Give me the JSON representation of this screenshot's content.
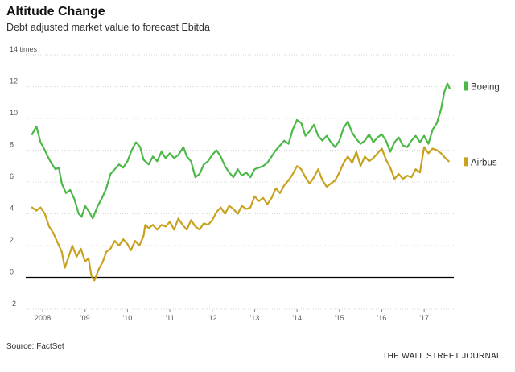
{
  "header": {
    "title": "Altitude Change",
    "subtitle": "Debt adjusted market value to forecast Ebitda"
  },
  "footer": {
    "source": "Source: FactSet",
    "credit": "THE WALL STREET JOURNAL."
  },
  "colors": {
    "boeing": "#4cb848",
    "airbus": "#c8a21e",
    "zero_line": "#000000",
    "grid": "#d6d6d6"
  },
  "chart_data": {
    "type": "line",
    "title": "Altitude Change",
    "subtitle": "Debt adjusted market value to forecast Ebitda",
    "xlabel": "",
    "ylabel": "",
    "xlim": [
      2007.6,
      2017.7
    ],
    "ylim": [
      -2,
      14
    ],
    "y_ticks": [
      -2,
      0,
      2,
      4,
      6,
      8,
      10,
      12,
      14
    ],
    "y_tick_labels": [
      "-2",
      "0",
      "2",
      "4",
      "6",
      "8",
      "10",
      "12",
      "14 times"
    ],
    "x_ticks": [
      2008,
      2009,
      2010,
      2011,
      2012,
      2013,
      2014,
      2015,
      2016,
      2017
    ],
    "x_tick_labels": [
      "2008",
      "'09",
      "'10",
      "'11",
      "'12",
      "'13",
      "'14",
      "'15",
      "'16",
      "'17"
    ],
    "grid": true,
    "legend_placement": "right, at line ends",
    "series": [
      {
        "name": "Boeing",
        "points": [
          [
            2007.75,
            9.0
          ],
          [
            2007.85,
            9.5
          ],
          [
            2007.95,
            8.5
          ],
          [
            2008.05,
            8.0
          ],
          [
            2008.12,
            7.6
          ],
          [
            2008.2,
            7.2
          ],
          [
            2008.3,
            6.8
          ],
          [
            2008.38,
            6.9
          ],
          [
            2008.45,
            5.9
          ],
          [
            2008.55,
            5.3
          ],
          [
            2008.65,
            5.5
          ],
          [
            2008.75,
            4.9
          ],
          [
            2008.85,
            4.0
          ],
          [
            2008.92,
            3.8
          ],
          [
            2009.0,
            4.5
          ],
          [
            2009.1,
            4.1
          ],
          [
            2009.18,
            3.7
          ],
          [
            2009.3,
            4.5
          ],
          [
            2009.4,
            5.0
          ],
          [
            2009.5,
            5.6
          ],
          [
            2009.6,
            6.5
          ],
          [
            2009.7,
            6.8
          ],
          [
            2009.8,
            7.1
          ],
          [
            2009.9,
            6.9
          ],
          [
            2010.0,
            7.3
          ],
          [
            2010.1,
            8.0
          ],
          [
            2010.2,
            8.5
          ],
          [
            2010.3,
            8.2
          ],
          [
            2010.38,
            7.4
          ],
          [
            2010.5,
            7.1
          ],
          [
            2010.6,
            7.6
          ],
          [
            2010.7,
            7.3
          ],
          [
            2010.8,
            7.9
          ],
          [
            2010.9,
            7.5
          ],
          [
            2011.0,
            7.8
          ],
          [
            2011.1,
            7.5
          ],
          [
            2011.2,
            7.7
          ],
          [
            2011.32,
            8.2
          ],
          [
            2011.4,
            7.6
          ],
          [
            2011.5,
            7.3
          ],
          [
            2011.6,
            6.3
          ],
          [
            2011.7,
            6.5
          ],
          [
            2011.8,
            7.1
          ],
          [
            2011.9,
            7.3
          ],
          [
            2012.0,
            7.7
          ],
          [
            2012.1,
            8.0
          ],
          [
            2012.2,
            7.6
          ],
          [
            2012.3,
            7.0
          ],
          [
            2012.4,
            6.6
          ],
          [
            2012.5,
            6.3
          ],
          [
            2012.6,
            6.8
          ],
          [
            2012.7,
            6.4
          ],
          [
            2012.8,
            6.6
          ],
          [
            2012.9,
            6.3
          ],
          [
            2013.0,
            6.8
          ],
          [
            2013.1,
            6.9
          ],
          [
            2013.2,
            7.0
          ],
          [
            2013.3,
            7.2
          ],
          [
            2013.4,
            7.6
          ],
          [
            2013.5,
            8.0
          ],
          [
            2013.6,
            8.3
          ],
          [
            2013.7,
            8.6
          ],
          [
            2013.8,
            8.4
          ],
          [
            2013.9,
            9.3
          ],
          [
            2014.0,
            9.9
          ],
          [
            2014.1,
            9.7
          ],
          [
            2014.2,
            8.9
          ],
          [
            2014.3,
            9.2
          ],
          [
            2014.4,
            9.6
          ],
          [
            2014.5,
            8.9
          ],
          [
            2014.6,
            8.6
          ],
          [
            2014.7,
            8.9
          ],
          [
            2014.8,
            8.5
          ],
          [
            2014.9,
            8.2
          ],
          [
            2015.0,
            8.6
          ],
          [
            2015.1,
            9.4
          ],
          [
            2015.2,
            9.8
          ],
          [
            2015.3,
            9.1
          ],
          [
            2015.4,
            8.7
          ],
          [
            2015.5,
            8.4
          ],
          [
            2015.6,
            8.6
          ],
          [
            2015.7,
            9.0
          ],
          [
            2015.8,
            8.5
          ],
          [
            2015.9,
            8.8
          ],
          [
            2016.0,
            9.0
          ],
          [
            2016.1,
            8.6
          ],
          [
            2016.2,
            7.9
          ],
          [
            2016.3,
            8.5
          ],
          [
            2016.4,
            8.8
          ],
          [
            2016.5,
            8.3
          ],
          [
            2016.6,
            8.2
          ],
          [
            2016.7,
            8.6
          ],
          [
            2016.8,
            8.9
          ],
          [
            2016.9,
            8.5
          ],
          [
            2017.0,
            8.9
          ],
          [
            2017.1,
            8.4
          ],
          [
            2017.2,
            9.3
          ],
          [
            2017.3,
            9.7
          ],
          [
            2017.4,
            10.6
          ],
          [
            2017.48,
            11.7
          ],
          [
            2017.55,
            12.2
          ],
          [
            2017.6,
            11.9
          ]
        ]
      },
      {
        "name": "Airbus",
        "points": [
          [
            2007.75,
            4.4
          ],
          [
            2007.85,
            4.2
          ],
          [
            2007.95,
            4.4
          ],
          [
            2008.05,
            4.0
          ],
          [
            2008.15,
            3.2
          ],
          [
            2008.25,
            2.8
          ],
          [
            2008.35,
            2.2
          ],
          [
            2008.45,
            1.6
          ],
          [
            2008.52,
            0.6
          ],
          [
            2008.6,
            1.2
          ],
          [
            2008.7,
            2.0
          ],
          [
            2008.8,
            1.3
          ],
          [
            2008.9,
            1.8
          ],
          [
            2009.0,
            1.0
          ],
          [
            2009.08,
            1.2
          ],
          [
            2009.15,
            0.1
          ],
          [
            2009.22,
            -0.2
          ],
          [
            2009.32,
            0.5
          ],
          [
            2009.42,
            1.0
          ],
          [
            2009.5,
            1.6
          ],
          [
            2009.6,
            1.8
          ],
          [
            2009.7,
            2.3
          ],
          [
            2009.8,
            2.0
          ],
          [
            2009.9,
            2.4
          ],
          [
            2010.0,
            2.1
          ],
          [
            2010.08,
            1.7
          ],
          [
            2010.18,
            2.3
          ],
          [
            2010.28,
            2.0
          ],
          [
            2010.38,
            2.6
          ],
          [
            2010.42,
            3.3
          ],
          [
            2010.5,
            3.1
          ],
          [
            2010.6,
            3.3
          ],
          [
            2010.7,
            3.0
          ],
          [
            2010.8,
            3.3
          ],
          [
            2010.9,
            3.2
          ],
          [
            2011.0,
            3.5
          ],
          [
            2011.1,
            3.0
          ],
          [
            2011.2,
            3.7
          ],
          [
            2011.3,
            3.3
          ],
          [
            2011.4,
            3.0
          ],
          [
            2011.5,
            3.6
          ],
          [
            2011.6,
            3.2
          ],
          [
            2011.7,
            3.0
          ],
          [
            2011.8,
            3.4
          ],
          [
            2011.9,
            3.3
          ],
          [
            2012.0,
            3.6
          ],
          [
            2012.1,
            4.1
          ],
          [
            2012.2,
            4.4
          ],
          [
            2012.3,
            4.0
          ],
          [
            2012.4,
            4.5
          ],
          [
            2012.5,
            4.3
          ],
          [
            2012.6,
            4.0
          ],
          [
            2012.7,
            4.5
          ],
          [
            2012.8,
            4.3
          ],
          [
            2012.9,
            4.4
          ],
          [
            2013.0,
            5.1
          ],
          [
            2013.1,
            4.8
          ],
          [
            2013.2,
            5.0
          ],
          [
            2013.3,
            4.6
          ],
          [
            2013.4,
            5.0
          ],
          [
            2013.5,
            5.6
          ],
          [
            2013.6,
            5.3
          ],
          [
            2013.7,
            5.8
          ],
          [
            2013.8,
            6.1
          ],
          [
            2013.9,
            6.5
          ],
          [
            2014.0,
            7.0
          ],
          [
            2014.1,
            6.8
          ],
          [
            2014.2,
            6.3
          ],
          [
            2014.3,
            5.9
          ],
          [
            2014.4,
            6.3
          ],
          [
            2014.5,
            6.8
          ],
          [
            2014.6,
            6.1
          ],
          [
            2014.7,
            5.7
          ],
          [
            2014.8,
            5.9
          ],
          [
            2014.9,
            6.1
          ],
          [
            2015.0,
            6.6
          ],
          [
            2015.1,
            7.2
          ],
          [
            2015.2,
            7.6
          ],
          [
            2015.3,
            7.2
          ],
          [
            2015.4,
            7.9
          ],
          [
            2015.5,
            7.0
          ],
          [
            2015.6,
            7.6
          ],
          [
            2015.7,
            7.3
          ],
          [
            2015.8,
            7.5
          ],
          [
            2015.9,
            7.8
          ],
          [
            2016.0,
            8.1
          ],
          [
            2016.1,
            7.4
          ],
          [
            2016.2,
            6.9
          ],
          [
            2016.3,
            6.2
          ],
          [
            2016.4,
            6.5
          ],
          [
            2016.5,
            6.2
          ],
          [
            2016.6,
            6.4
          ],
          [
            2016.7,
            6.3
          ],
          [
            2016.8,
            6.8
          ],
          [
            2016.9,
            6.6
          ],
          [
            2017.0,
            8.2
          ],
          [
            2017.1,
            7.8
          ],
          [
            2017.2,
            8.1
          ],
          [
            2017.3,
            8.0
          ],
          [
            2017.4,
            7.8
          ],
          [
            2017.5,
            7.5
          ],
          [
            2017.58,
            7.3
          ]
        ]
      }
    ]
  }
}
